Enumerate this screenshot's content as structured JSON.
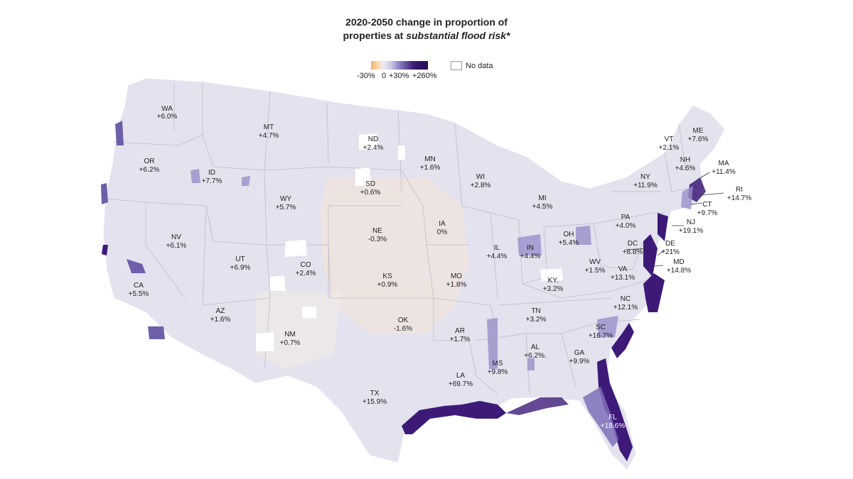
{
  "title_line1": "2020-2050 change in proportion of",
  "title_line2_prefix": "properties at ",
  "title_line2_italic": "substantial flood risk*",
  "legend": {
    "ticks": [
      "-30%",
      "0",
      "+30%",
      "+260%"
    ],
    "no_data_label": "No data",
    "colors": [
      "#f5b36a",
      "#eceaf2",
      "#8b7fc0",
      "#2a0a5a"
    ]
  },
  "states": [
    {
      "abbr": "WA",
      "value": "+6.0%"
    },
    {
      "abbr": "OR",
      "value": "+6.2%"
    },
    {
      "abbr": "CA",
      "value": "+5.5%"
    },
    {
      "abbr": "ID",
      "value": "+7.7%"
    },
    {
      "abbr": "NV",
      "value": "+6.1%"
    },
    {
      "abbr": "MT",
      "value": "+4.7%"
    },
    {
      "abbr": "WY",
      "value": "+5.7%"
    },
    {
      "abbr": "UT",
      "value": "+6.9%"
    },
    {
      "abbr": "AZ",
      "value": "+1.6%"
    },
    {
      "abbr": "CO",
      "value": "+2.4%"
    },
    {
      "abbr": "NM",
      "value": "+0.7%"
    },
    {
      "abbr": "ND",
      "value": "+2.4%"
    },
    {
      "abbr": "SD",
      "value": "+0.6%"
    },
    {
      "abbr": "NE",
      "value": "-0.3%"
    },
    {
      "abbr": "KS",
      "value": "+0.9%"
    },
    {
      "abbr": "OK",
      "value": "-1.6%"
    },
    {
      "abbr": "TX",
      "value": "+15.9%"
    },
    {
      "abbr": "MN",
      "value": "+1.6%"
    },
    {
      "abbr": "IA",
      "value": "0%"
    },
    {
      "abbr": "MO",
      "value": "+1.8%"
    },
    {
      "abbr": "AR",
      "value": "+1.7%"
    },
    {
      "abbr": "LA",
      "value": "+69.7%"
    },
    {
      "abbr": "WI",
      "value": "+2.8%"
    },
    {
      "abbr": "IL",
      "value": "+4.4%"
    },
    {
      "abbr": "MI",
      "value": "+4.5%"
    },
    {
      "abbr": "IN",
      "value": "+4.4%"
    },
    {
      "abbr": "OH",
      "value": "+5.4%"
    },
    {
      "abbr": "KY.",
      "value": "+3.2%"
    },
    {
      "abbr": "TN",
      "value": "+3.2%"
    },
    {
      "abbr": "MS",
      "value": "+9.8%"
    },
    {
      "abbr": "AL",
      "value": "+6.2%."
    },
    {
      "abbr": "GA",
      "value": "+9.9%"
    },
    {
      "abbr": "FL",
      "value": "+18.6%"
    },
    {
      "abbr": "SC",
      "value": "+16.7%"
    },
    {
      "abbr": "NC",
      "value": "+12.1%"
    },
    {
      "abbr": "VA",
      "value": "+13.1%"
    },
    {
      "abbr": "WV",
      "value": "+1.5%"
    },
    {
      "abbr": "PA",
      "value": "+4.0%"
    },
    {
      "abbr": "NY",
      "value": "+11.9%"
    },
    {
      "abbr": "VT",
      "value": "+2.1%"
    },
    {
      "abbr": "NH",
      "value": "+4.6%"
    },
    {
      "abbr": "ME",
      "value": "+7.6%"
    },
    {
      "abbr": "MA",
      "value": "+11.4%"
    },
    {
      "abbr": "RI",
      "value": "+14.7%"
    },
    {
      "abbr": "CT",
      "value": "+9.7%"
    },
    {
      "abbr": "NJ",
      "value": "+19.1%"
    },
    {
      "abbr": "DC",
      "value": "+8.8%"
    },
    {
      "abbr": "DE",
      "value": "+21%"
    },
    {
      "abbr": "MD",
      "value": "+14.8%"
    }
  ]
}
